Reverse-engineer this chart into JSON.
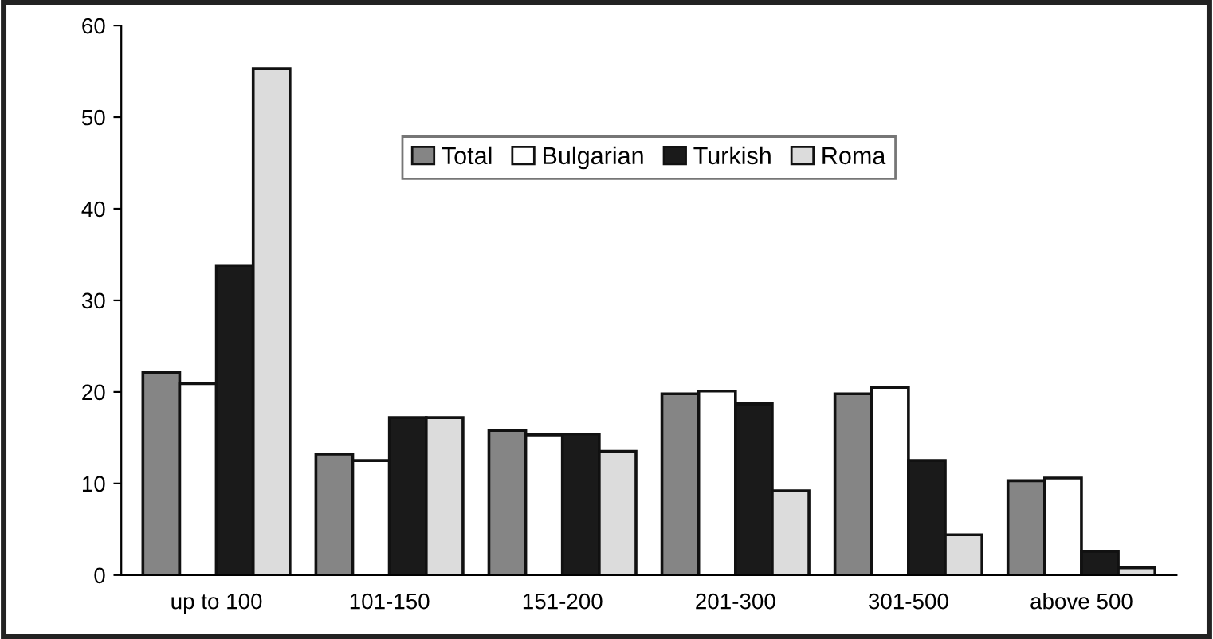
{
  "chart_data": {
    "type": "bar",
    "categories": [
      "up to 100",
      "101-150",
      "151-200",
      "201-300",
      "301-500",
      "above 500"
    ],
    "series": [
      {
        "name": "Total",
        "color": "#858585",
        "values": [
          22.1,
          13.2,
          15.8,
          19.8,
          19.8,
          10.3
        ]
      },
      {
        "name": "Bulgarian",
        "color": "#ffffff",
        "values": [
          20.9,
          12.5,
          15.3,
          20.1,
          20.5,
          10.6
        ]
      },
      {
        "name": "Turkish",
        "color": "#1a1a1a",
        "values": [
          33.8,
          17.2,
          15.4,
          18.7,
          12.5,
          2.6
        ]
      },
      {
        "name": "Roma",
        "color": "#dcdcdc",
        "values": [
          55.3,
          17.2,
          13.5,
          9.2,
          4.4,
          0.8
        ]
      }
    ],
    "ylim": [
      0,
      60
    ],
    "yticks": [
      0,
      10,
      20,
      30,
      40,
      50,
      60
    ],
    "grid": false,
    "legend": "top"
  }
}
